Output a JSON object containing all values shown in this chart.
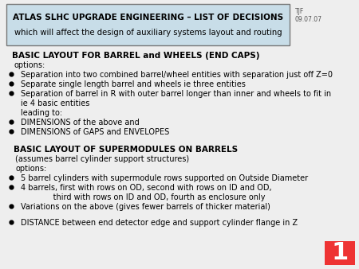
{
  "title_line1": "ATLAS SLHC UPGRADE ENGINEERING – LIST OF DECISIONS",
  "title_line2": "which will affect the design of auxiliary systems layout and routing",
  "title_box_facecolor": "#c8dde8",
  "title_box_edgecolor": "#777777",
  "author": "TJF\n09.07.07",
  "bg_color": "#eeeeee",
  "slide_number": "1",
  "slide_number_bg": "#ee3333",
  "slide_number_color": "#ffffff",
  "section1_title": "BASIC LAYOUT FOR BARREL and WHEELS (END CAPS)",
  "section1_sub": "options:",
  "section1_b1": "Separation into two combined barrel/wheel entities with separation just off Z=0",
  "section1_b2": "Separate single length barrel and wheels ie three entities",
  "section1_b3a": "Separation of barrel in R with outer barrel longer than inner and wheels to fit in",
  "section1_b3b": "ie 4 basic entities",
  "section1_b3c": "leading to:",
  "section1_b4": "DIMENSIONS of the above and",
  "section1_b5": "DIMENSIONS of GAPS and ENVELOPES",
  "section2_title": "BASIC LAYOUT OF SUPERMODULES ON BARRELS",
  "section2_sub1": "(assumes barrel cylinder support structures)",
  "section2_sub2": "options:",
  "section2_b1": "5 barrel cylinders with supermodule rows supported on Outside Diameter",
  "section2_b2a": "4 barrels, first with rows on OD, second with rows on ID and OD,",
  "section2_b2b": "             third with rows on ID and OD, fourth as enclosure only",
  "section2_b3": "Variations on the above (gives fewer barrels of thicker material)",
  "section3_b1": "DISTANCE between end detector edge and support cylinder flange in Z"
}
